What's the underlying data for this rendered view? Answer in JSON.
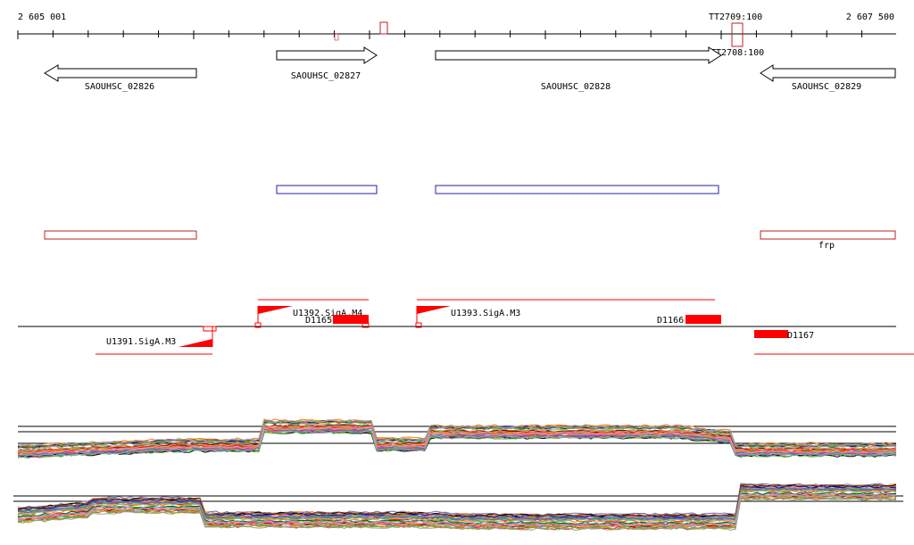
{
  "ruler": {
    "start_label": "2 605 001",
    "end_label": "2 607 500"
  },
  "terminators": [
    {
      "label": "TT2709:100"
    },
    {
      "label": "TT2708:100"
    }
  ],
  "genes": [
    {
      "label": "SAOUHSC_02826",
      "strand": "-"
    },
    {
      "label": "SAOUHSC_02827",
      "strand": "+"
    },
    {
      "label": "SAOUHSC_02828",
      "strand": "+"
    },
    {
      "label": "SAOUHSC_02829",
      "strand": "-"
    }
  ],
  "annotation_boxes": [
    {
      "label": "",
      "color": "#2020a0"
    },
    {
      "label": "",
      "color": "#2020a0"
    },
    {
      "label": "",
      "color": "#c02020"
    },
    {
      "label": "frp",
      "color": "#c02020"
    }
  ],
  "promoters": [
    {
      "label": "U1391.SigA.M3",
      "strand": "-"
    },
    {
      "label": "U1392.SigA.M4",
      "strand": "+"
    },
    {
      "label": "U1393.SigA.M3",
      "strand": "+"
    }
  ],
  "features": [
    {
      "label": "D1165"
    },
    {
      "label": "D1166"
    },
    {
      "label": "D1167"
    }
  ],
  "colors": {
    "accent": "#ff0000",
    "dark_red": "#c02020",
    "blue": "#2020a0"
  },
  "expression_tracks": {
    "plus_strand_profiles": "multi-color",
    "minus_strand_profiles": "multi-color"
  }
}
